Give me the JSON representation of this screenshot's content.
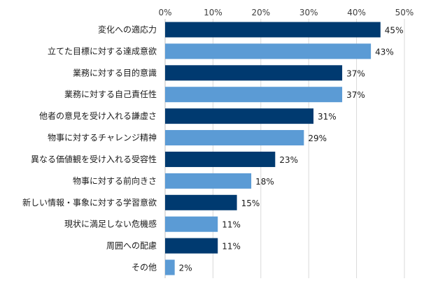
{
  "chart_data": {
    "type": "bar",
    "orientation": "horizontal",
    "categories": [
      "変化への適応力",
      "立てた目標に対する達成意欲",
      "業務に対する目的意識",
      "業務に対する自己責任性",
      "他者の意見を受け入れる謙虚さ",
      "物事に対するチャレンジ精神",
      "異なる価値観を受け入れる受容性",
      "物事に対する前向きさ",
      "新しい情報・事象に対する学習意欲",
      "現状に満足しない危機感",
      "周囲への配慮",
      "その他"
    ],
    "values": [
      45,
      43,
      37,
      37,
      31,
      29,
      23,
      18,
      15,
      11,
      11,
      2
    ],
    "data_labels": [
      "45%",
      "43%",
      "37%",
      "37%",
      "31%",
      "29%",
      "23%",
      "18%",
      "15%",
      "11%",
      "11%",
      "2%"
    ],
    "x_ticks": [
      "0%",
      "10%",
      "20%",
      "30%",
      "40%",
      "50%"
    ],
    "xlim": [
      0,
      50
    ],
    "xaxis_position": "top",
    "grid": true,
    "legend": "none",
    "colors": [
      "#003a70",
      "#5b9bd5"
    ]
  }
}
